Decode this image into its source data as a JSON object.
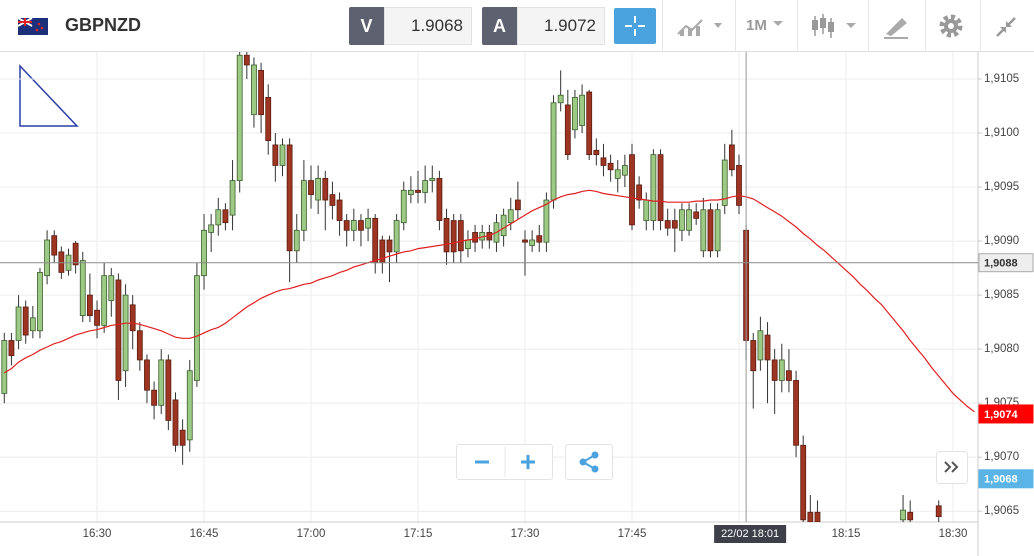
{
  "header": {
    "symbol": "GBPNZD",
    "bid_label": "V",
    "bid": 1.9068,
    "ask_label": "A",
    "ask": 1.9072,
    "timeframe": "1M"
  },
  "chart_data": {
    "type": "candlestick",
    "categories": [
      null,
      null,
      null,
      null,
      null,
      null,
      null,
      null,
      null,
      null,
      null,
      null,
      null,
      "16:30",
      null,
      null,
      null,
      null,
      null,
      null,
      null,
      null,
      null,
      null,
      null,
      null,
      null,
      null,
      "16:45",
      null,
      null,
      null,
      null,
      null,
      null,
      null,
      null,
      null,
      null,
      null,
      null,
      null,
      null,
      "17:00",
      null,
      null,
      null,
      null,
      null,
      null,
      null,
      null,
      null,
      null,
      null,
      null,
      null,
      null,
      "17:15",
      null,
      null,
      null,
      null,
      null,
      null,
      null,
      null,
      null,
      null,
      null,
      null,
      null,
      null,
      "17:30",
      null,
      null,
      null,
      null,
      null,
      null,
      null,
      null,
      null,
      null,
      null,
      null,
      null,
      null,
      "17:45",
      null,
      null,
      null,
      null,
      null,
      null,
      null,
      null,
      null,
      null,
      null,
      null,
      null,
      null,
      "18:00",
      null,
      null,
      null,
      null,
      null,
      null,
      null,
      null,
      null,
      null,
      null,
      null,
      null,
      null,
      "18:15",
      null,
      null,
      null,
      null,
      null,
      null,
      null,
      null,
      null,
      null,
      null,
      null,
      null,
      null,
      "18:30",
      null,
      null,
      null
    ],
    "open": [
      1.90759,
      1.90808,
      1.90808,
      1.90839,
      1.90817,
      1.90817,
      1.90868,
      1.90905,
      1.9089,
      1.90873,
      1.90898,
      1.90831,
      1.9085,
      1.90836,
      1.90822,
      1.90845,
      1.90864,
      1.9078,
      1.90841,
      1.90817,
      1.9079,
      1.90762,
      1.90748,
      1.9079,
      1.90753,
      1.90725,
      1.90716,
      1.90771,
      1.90868,
      1.90908,
      1.90915,
      1.90929,
      1.90924,
      1.90956,
      1.91072,
      1.91017,
      1.91058,
      1.91033,
      1.90989,
      1.9097,
      1.90989,
      1.90891,
      1.9091,
      1.90956,
      1.90938,
      1.90958,
      1.90943,
      1.90938,
      1.90919,
      1.9091,
      1.90919,
      1.90912,
      1.90921,
      1.90901,
      1.90901,
      1.9089,
      1.90917,
      1.90943,
      1.90947,
      1.90945,
      1.90956,
      1.90958,
      1.90921,
      1.90919,
      1.90919,
      1.90893,
      1.90908,
      1.90901,
      1.90908,
      1.90899,
      1.90905,
      1.90917,
      1.90938,
      1.90901,
      1.90896,
      1.90905,
      1.90899,
      1.90938,
      1.91028,
      1.91026,
      1.91003,
      1.91007,
      1.91038,
      1.90984,
      1.90977,
      1.90972,
      1.90958,
      1.90961,
      1.9098,
      1.90952,
      1.90919,
      1.90919,
      1.9098,
      1.90919,
      1.90919,
      1.9091,
      1.9091,
      1.90927,
      1.90891,
      1.90929,
      1.90891,
      1.90933,
      1.90989,
      1.9097,
      1.9091,
      1.90808,
      1.9079,
      1.90813,
      1.9079,
      1.90771,
      1.9078,
      1.90771,
      1.90711,
      1.90649,
      1.90649,
      null,
      null,
      null,
      null,
      null,
      null,
      null,
      null,
      null,
      null,
      null,
      1.90642,
      1.90649,
      null,
      null,
      null,
      1.90655,
      null,
      null,
      null,
      null,
      null
    ],
    "high": [
      1.90815,
      1.90815,
      1.9085,
      1.90845,
      1.9084,
      1.90875,
      1.9091,
      1.9091,
      1.90895,
      1.90893,
      1.909,
      1.9089,
      1.9087,
      1.90845,
      1.9088,
      1.90875,
      1.9087,
      1.9086,
      1.9085,
      1.90825,
      1.90795,
      1.9077,
      1.908,
      1.90795,
      1.9076,
      1.90735,
      1.9079,
      1.9088,
      1.90925,
      1.90925,
      1.9094,
      1.90935,
      1.90975,
      1.9108,
      1.9108,
      1.9107,
      1.91065,
      1.91045,
      1.91,
      1.90995,
      1.90995,
      1.90925,
      1.90975,
      1.9097,
      1.9097,
      1.90965,
      1.90955,
      1.90945,
      1.90925,
      1.9093,
      1.90925,
      1.9093,
      1.90925,
      1.90905,
      1.90905,
      1.90925,
      1.90955,
      1.9096,
      1.90965,
      1.9097,
      1.9097,
      1.90965,
      1.9093,
      1.90925,
      1.90925,
      1.9091,
      1.90915,
      1.90915,
      1.90915,
      1.90925,
      1.9093,
      1.9094,
      1.90955,
      1.9091,
      1.9091,
      1.90915,
      1.90945,
      1.91035,
      1.91058,
      1.9104,
      1.9104,
      1.91045,
      1.9104,
      1.90995,
      1.9099,
      1.9098,
      1.90975,
      1.9098,
      1.9099,
      1.9096,
      1.90945,
      1.90985,
      1.90985,
      1.9093,
      1.9093,
      1.90935,
      1.90935,
      1.90935,
      1.9094,
      1.90935,
      1.90935,
      1.9099,
      1.91003,
      1.9098,
      1.90915,
      1.90815,
      1.9083,
      1.90825,
      1.908,
      1.90805,
      1.908,
      1.9078,
      1.9072,
      1.90665,
      1.9066,
      null,
      null,
      null,
      null,
      null,
      null,
      null,
      null,
      null,
      null,
      null,
      1.90665,
      1.9066,
      null,
      null,
      null,
      1.9066,
      null,
      null,
      null,
      null,
      null
    ],
    "low": [
      1.9075,
      1.90785,
      1.908,
      1.90805,
      1.9081,
      1.9081,
      1.9086,
      1.9088,
      1.90865,
      1.90868,
      1.9087,
      1.90825,
      1.90825,
      1.9081,
      1.90815,
      1.9083,
      1.90753,
      1.90765,
      1.908,
      1.9078,
      1.9075,
      1.90735,
      1.9074,
      1.90725,
      1.90705,
      1.90693,
      1.90705,
      1.90765,
      1.90855,
      1.9089,
      1.90905,
      1.9091,
      1.9091,
      1.90945,
      1.9105,
      1.91005,
      1.91,
      1.9098,
      1.90955,
      1.9096,
      1.90862,
      1.9088,
      1.909,
      1.9093,
      1.90925,
      1.9091,
      1.9092,
      1.90905,
      1.90895,
      1.909,
      1.90895,
      1.909,
      1.9087,
      1.9087,
      1.90862,
      1.9088,
      1.9091,
      1.90935,
      1.90935,
      1.90935,
      1.90945,
      1.9091,
      1.90878,
      1.9088,
      1.9088,
      1.90885,
      1.9089,
      1.90893,
      1.90893,
      1.9089,
      1.90895,
      1.9091,
      1.9092,
      1.90868,
      1.9089,
      1.9089,
      1.9089,
      1.9093,
      1.9102,
      1.90975,
      1.90995,
      1.91,
      1.90975,
      1.9097,
      1.9096,
      1.90955,
      1.90945,
      1.9095,
      1.9091,
      1.9093,
      1.9091,
      1.9091,
      1.9091,
      1.90905,
      1.9089,
      1.909,
      1.90905,
      1.90915,
      1.90885,
      1.90885,
      1.90885,
      1.90925,
      1.9096,
      1.90925,
      1.9079,
      1.90745,
      1.9078,
      1.9075,
      1.9074,
      1.9076,
      1.9076,
      1.907,
      1.9063,
      1.9063,
      1.9063,
      null,
      null,
      null,
      null,
      null,
      null,
      null,
      null,
      null,
      null,
      null,
      1.9063,
      1.9063,
      null,
      null,
      null,
      1.9063,
      null,
      null,
      null,
      null,
      null
    ],
    "close": [
      1.90808,
      1.90794,
      1.90839,
      1.90813,
      1.90829,
      1.90871,
      1.90901,
      1.90887,
      1.90871,
      1.90887,
      1.90878,
      1.90882,
      1.90831,
      1.90822,
      1.90868,
      1.90868,
      1.90771,
      1.9085,
      1.90817,
      1.9079,
      1.90762,
      1.90748,
      1.9079,
      1.90734,
      1.90711,
      1.90711,
      1.9078,
      1.90868,
      1.9091,
      1.90915,
      1.90929,
      1.90917,
      1.90956,
      1.91072,
      1.91063,
      1.91063,
      1.91017,
      1.90993,
      1.9097,
      1.90989,
      1.90891,
      1.9091,
      1.90956,
      1.90943,
      1.90958,
      1.90938,
      1.90933,
      1.90919,
      1.9091,
      1.90919,
      1.9091,
      1.90921,
      1.9088,
      1.9088,
      1.9089,
      1.90919,
      1.90947,
      1.90947,
      1.90945,
      1.90956,
      1.90958,
      1.90919,
      1.9089,
      1.9089,
      1.90891,
      1.90901,
      1.90899,
      1.90908,
      1.90901,
      1.90917,
      1.90924,
      1.90929,
      1.90929,
      1.90899,
      1.90901,
      1.90899,
      1.90938,
      1.91028,
      1.91035,
      1.9098,
      1.91033,
      1.91035,
      1.9098,
      1.9098,
      1.9097,
      1.90966,
      1.90966,
      1.9097,
      1.90915,
      1.90938,
      1.90938,
      1.9098,
      1.90919,
      1.90912,
      1.90912,
      1.90929,
      1.90929,
      1.90921,
      1.90929,
      1.90891,
      1.90929,
      1.90975,
      1.90966,
      1.90933,
      1.90808,
      1.9078,
      1.90817,
      1.9079,
      1.90771,
      1.9079,
      1.90771,
      1.90711,
      1.90642,
      1.9064,
      1.9064,
      null,
      null,
      null,
      null,
      null,
      null,
      null,
      null,
      null,
      null,
      null,
      1.90651,
      1.90642,
      null,
      null,
      null,
      1.90645,
      null,
      null,
      null,
      null,
      null
    ],
    "up_color": "#9cc984",
    "down_color": "#9e3522",
    "ma": {
      "color": "#e02020",
      "values": [
        1.90778,
        1.90782,
        1.90788,
        1.90792,
        1.90795,
        1.90799,
        1.90802,
        1.90805,
        1.90807,
        1.9081,
        1.90813,
        1.90815,
        1.90817,
        1.90818,
        1.9082,
        1.90822,
        1.90823,
        1.90824,
        1.90824,
        1.90823,
        1.90821,
        1.90819,
        1.90817,
        1.90814,
        1.90811,
        1.9081,
        1.9081,
        1.90812,
        1.90815,
        1.90818,
        1.9082,
        1.90824,
        1.90829,
        1.90834,
        1.90839,
        1.90843,
        1.90847,
        1.9085,
        1.90853,
        1.90855,
        1.90856,
        1.90858,
        1.9086,
        1.90861,
        1.90864,
        1.90866,
        1.90868,
        1.90871,
        1.90873,
        1.90876,
        1.90878,
        1.9088,
        1.90882,
        1.90884,
        1.90886,
        1.90888,
        1.9089,
        1.90891,
        1.90893,
        1.90894,
        1.90895,
        1.90896,
        1.90897,
        1.90898,
        1.909,
        1.90901,
        1.90902,
        1.90904,
        1.90905,
        1.90908,
        1.90912,
        1.90916,
        1.9092,
        1.90924,
        1.90928,
        1.90931,
        1.90934,
        1.90938,
        1.90941,
        1.90943,
        1.90944,
        1.90946,
        1.90947,
        1.90946,
        1.90944,
        1.90943,
        1.90942,
        1.90941,
        1.9094,
        1.90939,
        1.90938,
        1.90937,
        1.90937,
        1.90936,
        1.90936,
        1.90936,
        1.90936,
        1.90937,
        1.90937,
        1.90938,
        1.90938,
        1.90939,
        1.90941,
        1.90942,
        1.90941,
        1.90939,
        1.90935,
        1.90931,
        1.90927,
        1.90923,
        1.90918,
        1.90913,
        1.90907,
        1.90902,
        1.90896,
        1.90891,
        1.90885,
        1.90879,
        1.90873,
        1.90867,
        1.9086,
        1.90854,
        1.90847,
        1.90841,
        1.90833,
        1.90825,
        1.90817,
        1.90808,
        1.908,
        1.90792,
        1.90783,
        1.90775,
        1.90767,
        1.90759,
        1.90753,
        1.90747,
        1.90742
      ]
    },
    "ylim": [
      1.9064,
      1.91075
    ],
    "yticks": [
      {
        "value": 1.9065,
        "label": "1,9065"
      },
      {
        "value": 1.907,
        "label": "1,9070"
      },
      {
        "value": 1.9075,
        "label": "1,9075"
      },
      {
        "value": 1.908,
        "label": "1,9080"
      },
      {
        "value": 1.9085,
        "label": "1,9085"
      },
      {
        "value": 1.909,
        "label": "1,9090"
      },
      {
        "value": 1.9095,
        "label": "1,9095"
      },
      {
        "value": 1.91,
        "label": "1,9100"
      },
      {
        "value": 1.9105,
        "label": "1,9105"
      }
    ],
    "grid": true,
    "price_line": {
      "value": 1.9088,
      "label": "1,9088"
    },
    "ma_label": {
      "value": 1.9074,
      "label": "1,9074"
    },
    "bid_label": {
      "value": 1.9068,
      "label": "1,9068"
    },
    "crosshair_label": "22/02 18:01"
  }
}
